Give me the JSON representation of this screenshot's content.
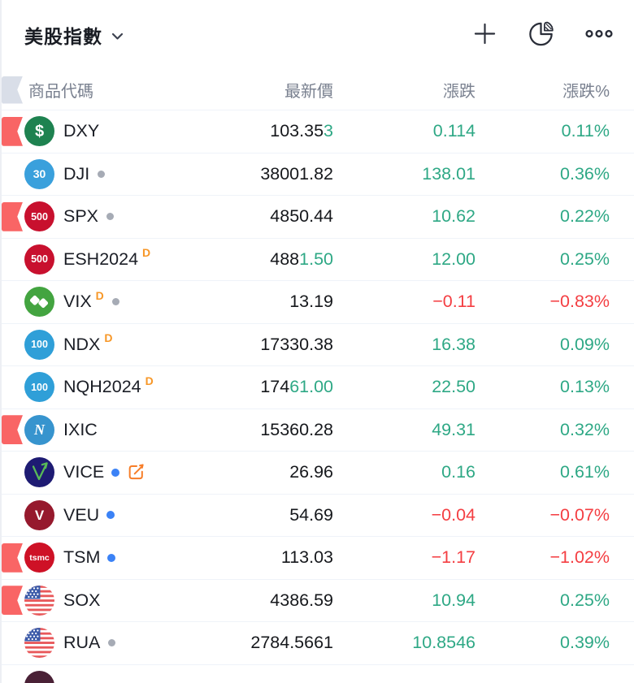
{
  "widget": {
    "title": "美股指數",
    "title_chevron_icon": "chevron-down-icon"
  },
  "toolbar": {
    "add_icon": "plus-icon",
    "distribution_icon": "pie-chart-icon",
    "more_icon": "more-icon"
  },
  "columns": {
    "symbol": "商品代碼",
    "price": "最新價",
    "change": "漲跌",
    "change_pct": "漲跌%"
  },
  "colors": {
    "up": "#2EA885",
    "down": "#F43E42",
    "flag": "#F96565",
    "header_flag": "#D9DEE8",
    "delayed_badge": "#F79727",
    "edit_icon": "#F77D28",
    "dot_blue": "#3B82F6",
    "dot_gray": "#A6ABB5",
    "text_primary": "#16181C",
    "text_header": "#79808F"
  },
  "rows": [
    {
      "symbol": "DXY",
      "flag": true,
      "badge": {
        "type": "text",
        "label": "$",
        "bg": "#1E8250",
        "size": 20
      },
      "sup": null,
      "dot": null,
      "edit": false,
      "price_main": "103.35",
      "price_flash": "3",
      "change": "0.114",
      "change_pct": "0.11%",
      "dir": "up"
    },
    {
      "symbol": "DJI",
      "flag": false,
      "badge": {
        "type": "text",
        "label": "30",
        "bg": "#3AA0DC",
        "size": 14
      },
      "sup": null,
      "dot": "gray",
      "edit": false,
      "price_main": "38001.82",
      "price_flash": "",
      "change": "138.01",
      "change_pct": "0.36%",
      "dir": "up"
    },
    {
      "symbol": "SPX",
      "flag": true,
      "badge": {
        "type": "text",
        "label": "500",
        "bg": "#C8102E",
        "size": 12.5
      },
      "sup": null,
      "dot": "gray",
      "edit": false,
      "price_main": "4850.44",
      "price_flash": "",
      "change": "10.62",
      "change_pct": "0.22%",
      "dir": "up"
    },
    {
      "symbol": "ESH2024",
      "flag": false,
      "badge": {
        "type": "text",
        "label": "500",
        "bg": "#C8102E",
        "size": 12.5
      },
      "sup": "D",
      "dot": null,
      "edit": false,
      "price_main": "488",
      "price_flash": "1.50",
      "change": "12.00",
      "change_pct": "0.25%",
      "dir": "up"
    },
    {
      "symbol": "VIX",
      "flag": false,
      "badge": {
        "type": "vix",
        "bg": "#43A440"
      },
      "sup": "D",
      "dot": "gray",
      "edit": false,
      "price_main": "13.19",
      "price_flash": "",
      "change": "−0.11",
      "change_pct": "−0.83%",
      "dir": "down"
    },
    {
      "symbol": "NDX",
      "flag": false,
      "badge": {
        "type": "text",
        "label": "100",
        "bg": "#2F9FD8",
        "size": 12.5
      },
      "sup": "D",
      "dot": null,
      "edit": false,
      "price_main": "17330.38",
      "price_flash": "",
      "change": "16.38",
      "change_pct": "0.09%",
      "dir": "up"
    },
    {
      "symbol": "NQH2024",
      "flag": false,
      "badge": {
        "type": "text",
        "label": "100",
        "bg": "#2F9FD8",
        "size": 12.5
      },
      "sup": "D",
      "dot": null,
      "edit": false,
      "price_main": "174",
      "price_flash": "61.00",
      "change": "22.50",
      "change_pct": "0.13%",
      "dir": "up"
    },
    {
      "symbol": "IXIC",
      "flag": true,
      "badge": {
        "type": "text",
        "label": "N",
        "bg": "#3794CE",
        "size": 18,
        "italic": true
      },
      "sup": null,
      "dot": null,
      "edit": false,
      "price_main": "15360.28",
      "price_flash": "",
      "change": "49.31",
      "change_pct": "0.32%",
      "dir": "up"
    },
    {
      "symbol": "VICE",
      "flag": false,
      "badge": {
        "type": "vice",
        "bg": "#1E1B73"
      },
      "sup": null,
      "dot": "blue",
      "edit": true,
      "price_main": "26.96",
      "price_flash": "",
      "change": "0.16",
      "change_pct": "0.61%",
      "dir": "up"
    },
    {
      "symbol": "VEU",
      "flag": false,
      "badge": {
        "type": "text",
        "label": "V",
        "bg": "#96192D",
        "size": 17
      },
      "sup": null,
      "dot": "blue",
      "edit": false,
      "price_main": "54.69",
      "price_flash": "",
      "change": "−0.04",
      "change_pct": "−0.07%",
      "dir": "down"
    },
    {
      "symbol": "TSM",
      "flag": true,
      "badge": {
        "type": "text",
        "label": "tsmc",
        "bg": "#CE1126",
        "size": 10.5
      },
      "sup": null,
      "dot": "blue",
      "edit": false,
      "price_main": "113.03",
      "price_flash": "",
      "change": "−1.17",
      "change_pct": "−1.02%",
      "dir": "down"
    },
    {
      "symbol": "SOX",
      "flag": true,
      "badge": {
        "type": "usflag",
        "bg": "#FFFFFF"
      },
      "sup": null,
      "dot": null,
      "edit": false,
      "price_main": "4386.59",
      "price_flash": "",
      "change": "10.94",
      "change_pct": "0.25%",
      "dir": "up"
    },
    {
      "symbol": "RUA",
      "flag": false,
      "badge": {
        "type": "usflag",
        "bg": "#FFFFFF"
      },
      "sup": null,
      "dot": "gray",
      "edit": false,
      "price_main": "2784.5661",
      "price_flash": "",
      "change": "10.8546",
      "change_pct": "0.39%",
      "dir": "up"
    },
    {
      "symbol": "",
      "flag": false,
      "badge": {
        "type": "blank",
        "bg": "#4A2136"
      },
      "sup": null,
      "dot": null,
      "edit": false,
      "price_main": "",
      "price_flash": "",
      "change": "",
      "change_pct": "",
      "dir": "up"
    }
  ]
}
